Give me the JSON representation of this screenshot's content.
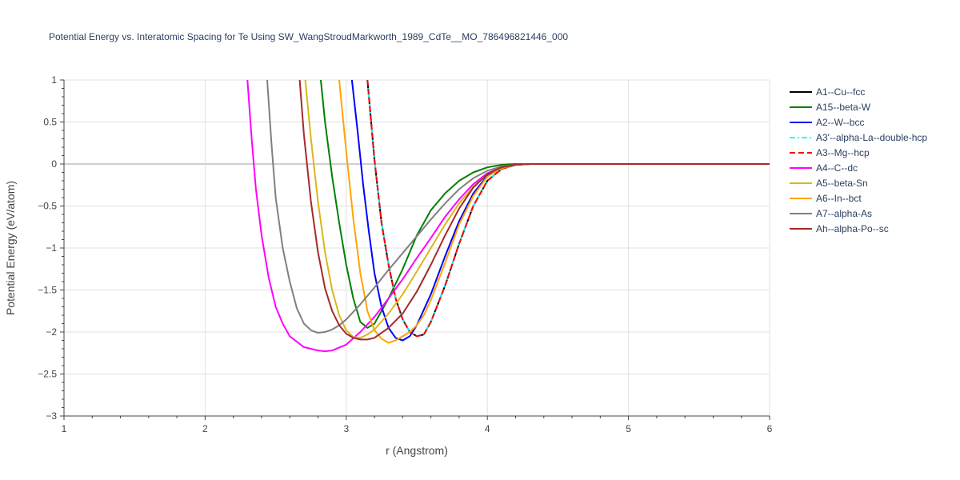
{
  "chart_data": {
    "type": "line",
    "title": "Potential Energy vs. Interatomic Spacing for Te Using SW_WangStroudMarkworth_1989_CdTe__MO_786496821446_000",
    "xlabel": "r (Angstrom)",
    "ylabel": "Potential Energy (eV/atom)",
    "xlim": [
      1,
      6
    ],
    "ylim": [
      -3,
      1
    ],
    "xticks": [
      "1",
      "2",
      "3",
      "4",
      "5",
      "6"
    ],
    "yticks": [
      "1",
      "0.5",
      "0",
      "−0.5",
      "−1",
      "−1.5",
      "−2",
      "−2.5",
      "−3"
    ],
    "ytick_values": [
      1,
      0.5,
      0,
      -0.5,
      -1,
      -1.5,
      -2,
      -2.5,
      -3
    ],
    "grid": true,
    "legend_position": "right",
    "series": [
      {
        "name": "A1--Cu--fcc",
        "color": "#000000",
        "dash": "solid",
        "x": [
          3.15,
          3.2,
          3.25,
          3.3,
          3.35,
          3.4,
          3.45,
          3.5,
          3.55,
          3.6,
          3.7,
          3.8,
          3.9,
          4.0,
          4.1,
          4.2,
          4.3,
          4.5,
          5.0,
          6.0
        ],
        "y": [
          1.0,
          0.05,
          -0.7,
          -1.2,
          -1.6,
          -1.85,
          -2.0,
          -2.05,
          -2.03,
          -1.88,
          -1.45,
          -0.95,
          -0.5,
          -0.2,
          -0.06,
          -0.01,
          0.0,
          0.0,
          0.0,
          0.0
        ]
      },
      {
        "name": "A15--beta-W",
        "color": "#008000",
        "dash": "solid",
        "x": [
          2.82,
          2.85,
          2.9,
          2.95,
          3.0,
          3.05,
          3.1,
          3.15,
          3.2,
          3.3,
          3.4,
          3.5,
          3.6,
          3.7,
          3.8,
          3.9,
          4.0,
          4.1,
          4.2,
          4.5,
          6.0
        ],
        "y": [
          1.0,
          0.5,
          -0.15,
          -0.7,
          -1.2,
          -1.6,
          -1.88,
          -1.95,
          -1.9,
          -1.6,
          -1.25,
          -0.85,
          -0.55,
          -0.35,
          -0.2,
          -0.1,
          -0.04,
          -0.01,
          0.0,
          0.0,
          0.0
        ]
      },
      {
        "name": "A2--W--bcc",
        "color": "#0000ff",
        "dash": "solid",
        "x": [
          3.04,
          3.08,
          3.12,
          3.16,
          3.2,
          3.25,
          3.3,
          3.35,
          3.4,
          3.45,
          3.5,
          3.6,
          3.7,
          3.8,
          3.9,
          4.0,
          4.1,
          4.2,
          4.3,
          4.5,
          6.0
        ],
        "y": [
          1.0,
          0.4,
          -0.25,
          -0.8,
          -1.3,
          -1.7,
          -1.95,
          -2.07,
          -2.1,
          -2.05,
          -1.92,
          -1.55,
          -1.1,
          -0.68,
          -0.35,
          -0.14,
          -0.04,
          -0.01,
          0.0,
          0.0,
          0.0
        ]
      },
      {
        "name": "A3'--alpha-La--double-hcp",
        "color": "#00ffff",
        "dash": "dashdot",
        "x": [
          3.15,
          3.2,
          3.25,
          3.3,
          3.35,
          3.4,
          3.45,
          3.5,
          3.55,
          3.6,
          3.7,
          3.8,
          3.9,
          4.0,
          4.1,
          4.2,
          4.3,
          4.5,
          5.0,
          6.0
        ],
        "y": [
          1.0,
          0.05,
          -0.7,
          -1.2,
          -1.6,
          -1.85,
          -2.0,
          -2.05,
          -2.03,
          -1.88,
          -1.45,
          -0.95,
          -0.5,
          -0.2,
          -0.06,
          -0.01,
          0.0,
          0.0,
          0.0,
          0.0
        ]
      },
      {
        "name": "A3--Mg--hcp",
        "color": "#ff0000",
        "dash": "dash",
        "x": [
          3.15,
          3.2,
          3.25,
          3.3,
          3.35,
          3.4,
          3.45,
          3.5,
          3.55,
          3.6,
          3.7,
          3.8,
          3.9,
          4.0,
          4.1,
          4.2,
          4.3,
          4.5,
          5.0,
          6.0
        ],
        "y": [
          1.0,
          0.05,
          -0.7,
          -1.2,
          -1.6,
          -1.85,
          -2.0,
          -2.05,
          -2.03,
          -1.88,
          -1.45,
          -0.95,
          -0.5,
          -0.2,
          -0.06,
          -0.01,
          0.0,
          0.0,
          0.0,
          0.0
        ]
      },
      {
        "name": "A4--C--dc",
        "color": "#ff00ff",
        "dash": "solid",
        "x": [
          2.3,
          2.33,
          2.36,
          2.4,
          2.45,
          2.5,
          2.55,
          2.6,
          2.7,
          2.8,
          2.85,
          2.9,
          3.0,
          3.1,
          3.2,
          3.3,
          3.4,
          3.5,
          3.6,
          3.7,
          3.8,
          3.9,
          4.0,
          4.1,
          4.2,
          4.3,
          4.5,
          6.0
        ],
        "y": [
          1.0,
          0.3,
          -0.3,
          -0.85,
          -1.35,
          -1.7,
          -1.9,
          -2.05,
          -2.18,
          -2.22,
          -2.23,
          -2.22,
          -2.15,
          -2.0,
          -1.82,
          -1.6,
          -1.37,
          -1.12,
          -0.88,
          -0.63,
          -0.42,
          -0.24,
          -0.11,
          -0.04,
          -0.01,
          0.0,
          0.0,
          0.0
        ]
      },
      {
        "name": "A5--beta-Sn",
        "color": "#dab61c",
        "dash": "solid",
        "x": [
          2.71,
          2.75,
          2.8,
          2.85,
          2.9,
          2.95,
          3.0,
          3.05,
          3.1,
          3.15,
          3.2,
          3.3,
          3.4,
          3.5,
          3.6,
          3.7,
          3.8,
          3.9,
          4.0,
          4.1,
          4.2,
          4.3,
          4.5,
          6.0
        ],
        "y": [
          1.0,
          0.3,
          -0.45,
          -1.05,
          -1.5,
          -1.8,
          -1.98,
          -2.06,
          -2.07,
          -2.03,
          -1.97,
          -1.78,
          -1.55,
          -1.28,
          -1.0,
          -0.72,
          -0.47,
          -0.27,
          -0.12,
          -0.04,
          -0.01,
          0.0,
          0.0,
          0.0
        ]
      },
      {
        "name": "A6--In--bct",
        "color": "#ffa500",
        "dash": "solid",
        "x": [
          2.95,
          3.0,
          3.05,
          3.1,
          3.15,
          3.2,
          3.25,
          3.3,
          3.35,
          3.4,
          3.45,
          3.5,
          3.55,
          3.6,
          3.7,
          3.8,
          3.9,
          4.0,
          4.1,
          4.2,
          4.3,
          4.5,
          6.0
        ],
        "y": [
          1.0,
          0.15,
          -0.65,
          -1.3,
          -1.75,
          -1.98,
          -2.08,
          -2.13,
          -2.1,
          -2.05,
          -2.0,
          -1.92,
          -1.8,
          -1.62,
          -1.18,
          -0.72,
          -0.38,
          -0.15,
          -0.05,
          -0.01,
          0.0,
          0.0,
          0.0
        ]
      },
      {
        "name": "A7--alpha-As",
        "color": "#808080",
        "dash": "solid",
        "x": [
          2.44,
          2.47,
          2.5,
          2.55,
          2.6,
          2.65,
          2.7,
          2.75,
          2.8,
          2.85,
          2.9,
          2.95,
          3.0,
          3.1,
          3.2,
          3.3,
          3.4,
          3.5,
          3.6,
          3.7,
          3.8,
          3.9,
          4.0,
          4.1,
          4.2,
          4.3,
          4.5,
          6.0
        ],
        "y": [
          1.0,
          0.25,
          -0.4,
          -1.0,
          -1.4,
          -1.72,
          -1.9,
          -1.98,
          -2.01,
          -2.0,
          -1.97,
          -1.92,
          -1.85,
          -1.67,
          -1.47,
          -1.26,
          -1.06,
          -0.86,
          -0.66,
          -0.47,
          -0.3,
          -0.17,
          -0.08,
          -0.03,
          -0.01,
          0.0,
          0.0,
          0.0
        ]
      },
      {
        "name": "Ah--alpha-Po--sc",
        "color": "#a52a2a",
        "dash": "solid",
        "x": [
          2.67,
          2.7,
          2.75,
          2.8,
          2.85,
          2.9,
          2.95,
          3.0,
          3.05,
          3.1,
          3.15,
          3.2,
          3.3,
          3.4,
          3.5,
          3.6,
          3.7,
          3.8,
          3.9,
          4.0,
          4.1,
          4.2,
          4.3,
          4.5,
          6.0
        ],
        "y": [
          1.0,
          0.35,
          -0.45,
          -1.05,
          -1.48,
          -1.75,
          -1.92,
          -2.02,
          -2.07,
          -2.09,
          -2.09,
          -2.07,
          -1.95,
          -1.78,
          -1.52,
          -1.2,
          -0.85,
          -0.53,
          -0.28,
          -0.12,
          -0.04,
          -0.01,
          0.0,
          0.0,
          0.0
        ]
      }
    ]
  }
}
